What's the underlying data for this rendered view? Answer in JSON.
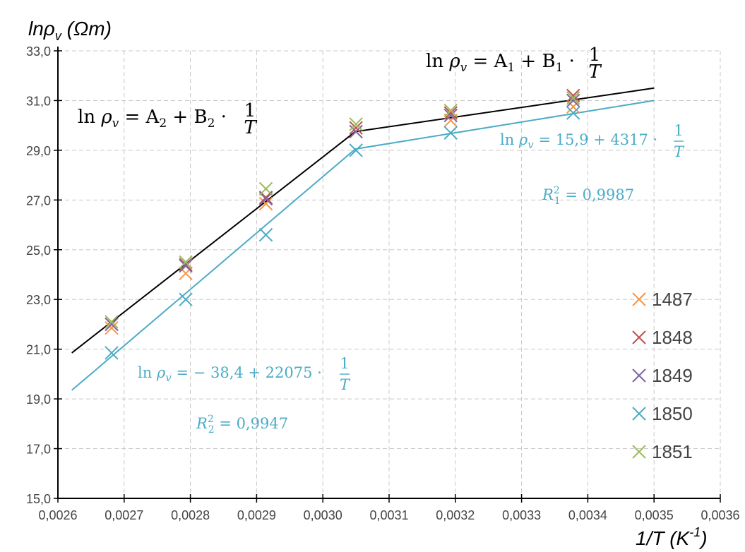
{
  "chart_data": {
    "type": "scatter",
    "xlabel_base": "1/T (K",
    "xlabel_sup": "-1",
    "xlabel_end": ")",
    "ylabel_base": "lnρ",
    "ylabel_sub": "v",
    "ylabel_unit": " (Ωm)",
    "xlim": [
      0.0026,
      0.0036
    ],
    "ylim": [
      15.0,
      33.0
    ],
    "x_ticks": [
      0.0026,
      0.0027,
      0.0028,
      0.0029,
      0.003,
      0.0031,
      0.0032,
      0.0033,
      0.0034,
      0.0035,
      0.0036
    ],
    "x_tick_labels": [
      "0,0026",
      "0,0027",
      "0,0028",
      "0,0029",
      "0,0030",
      "0,0031",
      "0,0032",
      "0,0033",
      "0,0034",
      "0,0035",
      "0,0036"
    ],
    "y_ticks": [
      15,
      17,
      19,
      21,
      23,
      25,
      27,
      29,
      31,
      33
    ],
    "y_tick_labels": [
      "15,0",
      "17,0",
      "19,0",
      "21,0",
      "23,0",
      "25,0",
      "27,0",
      "29,0",
      "31,0",
      "33,0"
    ],
    "grid": true,
    "legend_position": "right",
    "series": [
      {
        "name": "1487",
        "color": "#f79646",
        "marker": "x",
        "x": [
          0.002681,
          0.002793,
          0.002914,
          0.00305,
          0.003193,
          0.003378
        ],
        "y": [
          21.85,
          24.05,
          26.85,
          29.75,
          30.2,
          30.75
        ]
      },
      {
        "name": "1848",
        "color": "#c0504d",
        "marker": "x",
        "x": [
          0.002681,
          0.002793,
          0.002914,
          0.00305,
          0.003193,
          0.003378
        ],
        "y": [
          22.0,
          24.4,
          27.1,
          29.9,
          30.5,
          31.2
        ]
      },
      {
        "name": "1849",
        "color": "#8064a2",
        "marker": "x",
        "x": [
          0.002681,
          0.002793,
          0.002914,
          0.00305,
          0.003193,
          0.003378
        ],
        "y": [
          22.0,
          24.35,
          27.05,
          29.75,
          30.4,
          31.0
        ]
      },
      {
        "name": "1850",
        "color": "#4bacc6",
        "marker": "x",
        "x": [
          0.002681,
          0.002793,
          0.002914,
          0.00305,
          0.003193,
          0.003378
        ],
        "y": [
          20.85,
          23.0,
          25.6,
          29.0,
          29.7,
          30.5
        ]
      },
      {
        "name": "1851",
        "color": "#9bbb59",
        "marker": "x",
        "x": [
          0.002681,
          0.002793,
          0.002914,
          0.00305,
          0.003193,
          0.003378
        ],
        "y": [
          22.1,
          24.5,
          27.45,
          30.05,
          30.6,
          31.1
        ]
      }
    ],
    "fit_lines": [
      {
        "color": "#000000",
        "points": [
          [
            0.002621,
            20.85
          ],
          [
            0.003049,
            29.75
          ],
          [
            0.0035,
            31.5
          ]
        ]
      },
      {
        "color": "#4bacc6",
        "points": [
          [
            0.002621,
            19.35
          ],
          [
            0.003049,
            29.05
          ],
          [
            0.0035,
            31.0
          ]
        ]
      }
    ],
    "annotations": {
      "eq1_black": {
        "ln": "ln ",
        "rho": "ρ",
        "sub": "v",
        "mid": " = A",
        "i1": "1",
        "plus": " + B",
        "i2": "1",
        "dot": " · ",
        "num": "1",
        "den": "T"
      },
      "eq2_black": {
        "ln": "ln ",
        "rho": "ρ",
        "sub": "v",
        "mid": " = A",
        "i1": "2",
        "plus": " + B",
        "i2": "2",
        "dot": " · ",
        "num": "1",
        "den": "T"
      },
      "eq1_blue": {
        "ln": "ln ",
        "rho": "ρ",
        "sub": "v",
        "rhs": " = 15,9 + 4317 · ",
        "num": "1",
        "den": "T"
      },
      "eq2_blue": {
        "ln": "ln ",
        "rho": "ρ",
        "sub": "v",
        "rhs": " = − 38,4 + 22075 · ",
        "num": "1",
        "den": "T"
      },
      "r1": {
        "R": "R",
        "sup": "2",
        "sub": "1",
        "val": " = 0,9987"
      },
      "r2": {
        "R": "R",
        "sup": "2",
        "sub": "2",
        "val": " = 0,9947"
      }
    }
  }
}
